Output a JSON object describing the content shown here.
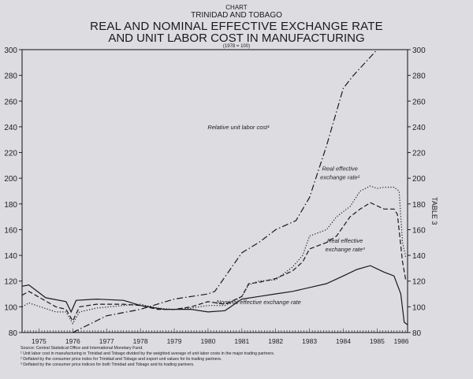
{
  "header": {
    "kicker": "CHART",
    "country": "TRINIDAD AND TOBAGO",
    "title_line1": "REAL  AND NOMINAL EFFECTIVE EXCHANGE RATE",
    "title_line2": "AND UNIT LABOR COST  IN MANUFACTURING",
    "base": "(1978 = 100)"
  },
  "side_label": "TABLE 3",
  "notes": {
    "source": "Source: Central Statistical Office and International Monetary Fund.",
    "n1": "¹ Unit labor cost in manufacturing in Trinidad and Tobago divided by the weighted average of unit labor costs in the major trading partners.",
    "n2": "² Deflated by the consumer price index for Trinidad and Tobago and export unit values for its trading partners.",
    "n3": "³ Deflated by the consumer price indices for both Trinidad and Tobago and its trading partners."
  },
  "chart_data": {
    "type": "line",
    "title": "REAL AND NOMINAL EFFECTIVE EXCHANGE RATE AND UNIT LABOR COST IN MANUFACTURING",
    "subtitle": "(1978 = 100)",
    "xlabel": "",
    "ylabel": "",
    "xlim": [
      1974.5,
      1985.9
    ],
    "ylim": [
      80,
      300
    ],
    "y_ticks": [
      80,
      100,
      120,
      140,
      160,
      180,
      200,
      220,
      240,
      260,
      280,
      300
    ],
    "x_tick_labels": [
      "1975",
      "1976",
      "1977",
      "1978",
      "1979",
      "1980",
      "1981",
      "1982",
      "1983",
      "1984",
      "1985",
      "1986"
    ],
    "grid": false,
    "series": [
      {
        "name": "Relative unit labor cost¹",
        "style": "dashdot",
        "x": [
          1976.0,
          1977.0,
          1978.0,
          1979.0,
          1980.0,
          1980.2,
          1981.0,
          1981.5,
          1982.0,
          1982.6,
          1983.0,
          1983.5,
          1984.0,
          1984.3,
          1985.0
        ],
        "y": [
          80,
          93,
          98,
          106,
          110,
          112,
          142,
          150,
          160,
          167,
          185,
          225,
          270,
          280,
          300
        ],
        "label": "Relative unit labor cost¹",
        "label_pos": [
          1980.9,
          238
        ]
      },
      {
        "name": "Real effective exchange rate²",
        "style": "dotted",
        "x": [
          1974.5,
          1974.7,
          1975.5,
          1975.8,
          1976.0,
          1976.2,
          1976.7,
          1977.5,
          1978.0,
          1978.5,
          1979.0,
          1979.5,
          1980.0,
          1980.5,
          1981.0,
          1981.2,
          1981.5,
          1982.0,
          1982.5,
          1982.8,
          1983.0,
          1983.5,
          1983.8,
          1984.2,
          1984.5,
          1984.8,
          1985.0,
          1985.2,
          1985.5,
          1985.65,
          1985.75,
          1985.85
        ],
        "y": [
          100,
          103,
          96,
          96,
          87,
          96,
          99,
          101,
          102,
          99,
          98,
          99,
          101,
          101,
          108,
          117,
          120,
          121,
          131,
          140,
          155,
          160,
          170,
          178,
          190,
          194,
          192,
          193,
          193,
          190,
          150,
          138
        ],
        "label": "Real effective|exchange rate²",
        "label_pos": [
          1983.9,
          206
        ]
      },
      {
        "name": "Real effective exchange rate³",
        "style": "dashed",
        "x": [
          1974.5,
          1974.7,
          1975.5,
          1975.8,
          1976.0,
          1976.2,
          1976.7,
          1977.5,
          1978.0,
          1978.5,
          1979.0,
          1979.5,
          1980.0,
          1980.5,
          1981.0,
          1981.2,
          1981.5,
          1982.0,
          1982.5,
          1982.8,
          1983.0,
          1983.5,
          1983.8,
          1984.2,
          1984.5,
          1984.8,
          1985.2,
          1985.5,
          1985.6,
          1985.75,
          1985.85
        ],
        "y": [
          109,
          112,
          100,
          98,
          89,
          100,
          102,
          102,
          101,
          98,
          98,
          100,
          104,
          102,
          108,
          118,
          119,
          122,
          128,
          135,
          145,
          150,
          155,
          170,
          176,
          181,
          176,
          176,
          172,
          135,
          120
        ],
        "label": "Real effective|exchange rate³",
        "label_pos": [
          1984.05,
          150
        ]
      },
      {
        "name": "Nominal effective exchange rate",
        "style": "solid",
        "x": [
          1974.5,
          1974.7,
          1975.2,
          1975.8,
          1975.95,
          1976.1,
          1976.7,
          1977.5,
          1978.0,
          1978.7,
          1979.5,
          1980.0,
          1980.5,
          1981.0,
          1981.5,
          1982.0,
          1982.5,
          1983.0,
          1983.5,
          1984.0,
          1984.4,
          1984.8,
          1985.2,
          1985.5,
          1985.7,
          1985.8,
          1985.9
        ],
        "y": [
          116,
          117,
          107,
          104,
          96,
          105,
          106,
          105,
          101,
          98,
          98,
          96,
          97,
          106,
          108,
          110,
          112,
          115,
          118,
          124,
          129,
          132,
          127,
          124,
          110,
          88,
          86
        ],
        "label": "Nominal effective exchange rate",
        "label_pos": [
          1981.5,
          102
        ]
      }
    ]
  }
}
